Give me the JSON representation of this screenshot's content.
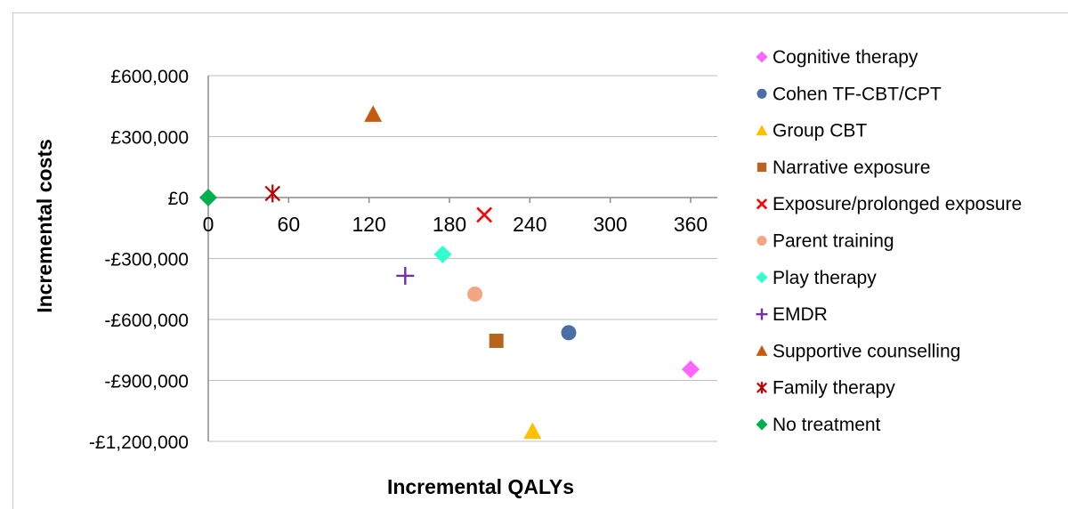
{
  "chart_data": {
    "type": "scatter",
    "title": "",
    "xlabel": "Incremental QALYs",
    "ylabel": "Incremental costs",
    "xlim": [
      0,
      360
    ],
    "ylim": [
      -1200000,
      600000
    ],
    "x_ticks": [
      0,
      60,
      120,
      180,
      240,
      300,
      360
    ],
    "x_tick_labels": [
      "0",
      "60",
      "120",
      "180",
      "240",
      "300",
      "360"
    ],
    "y_ticks": [
      600000,
      300000,
      0,
      -300000,
      -600000,
      -900000,
      -1200000
    ],
    "y_tick_labels": [
      "£600,000",
      "£300,000",
      "£0",
      "-£300,000",
      "-£600,000",
      "-£900,000",
      "-£1,200,000"
    ],
    "grid": "horizontal",
    "legend_position": "right",
    "series": [
      {
        "name": "Cognitive therapy",
        "marker": "diamond",
        "color": "#ff66ff",
        "points": [
          {
            "x": 360,
            "y": -845000
          }
        ]
      },
      {
        "name": "Cohen TF-CBT/CPT",
        "marker": "circle",
        "color": "#4a6fa5",
        "points": [
          {
            "x": 269,
            "y": -665000
          }
        ]
      },
      {
        "name": "Group CBT",
        "marker": "triangle",
        "color": "#ffc000",
        "points": [
          {
            "x": 242,
            "y": -1150000
          }
        ]
      },
      {
        "name": "Narrative exposure",
        "marker": "square",
        "color": "#b5651d",
        "points": [
          {
            "x": 215,
            "y": -705000
          }
        ]
      },
      {
        "name": "Exposure/prolonged exposure",
        "marker": "x",
        "color": "#ff0000",
        "points": [
          {
            "x": 206,
            "y": -85000
          }
        ]
      },
      {
        "name": "Parent training",
        "marker": "circle",
        "color": "#f4a582",
        "points": [
          {
            "x": 199,
            "y": -475000
          }
        ]
      },
      {
        "name": "Play therapy",
        "marker": "diamond",
        "color": "#33ffcc",
        "points": [
          {
            "x": 175,
            "y": -280000
          }
        ]
      },
      {
        "name": "EMDR",
        "marker": "plus",
        "color": "#7030a0",
        "points": [
          {
            "x": 147,
            "y": -385000
          }
        ]
      },
      {
        "name": "Supportive counselling",
        "marker": "triangle",
        "color": "#c55a11",
        "points": [
          {
            "x": 123,
            "y": 410000
          }
        ]
      },
      {
        "name": "Family therapy",
        "marker": "asterisk",
        "color": "#c00000",
        "points": [
          {
            "x": 48,
            "y": 20000
          }
        ]
      },
      {
        "name": "No treatment",
        "marker": "diamond",
        "color": "#00b050",
        "points": [
          {
            "x": 0,
            "y": 0
          }
        ]
      }
    ]
  }
}
